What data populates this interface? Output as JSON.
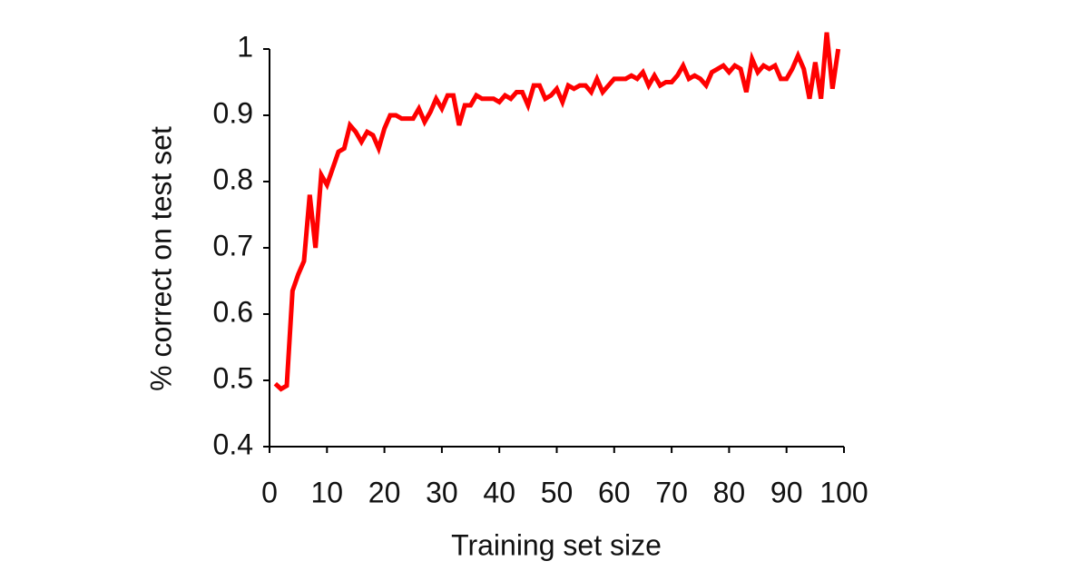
{
  "chart_data": {
    "type": "line",
    "x_label": "Training set size",
    "y_label": "% correct on test set",
    "xlim": [
      0,
      100
    ],
    "xticks": [
      0,
      10,
      20,
      30,
      40,
      50,
      60,
      70,
      80,
      90,
      100
    ],
    "ylim": [
      0.4,
      1
    ],
    "yticks": [
      0.4,
      0.5,
      0.6,
      0.7,
      0.8,
      0.9,
      1
    ],
    "grid": false,
    "x": [
      1,
      2,
      3,
      4,
      5,
      6,
      7,
      8,
      9,
      10,
      11,
      12,
      13,
      14,
      15,
      16,
      17,
      18,
      19,
      20,
      21,
      22,
      23,
      24,
      25,
      26,
      27,
      28,
      29,
      30,
      31,
      32,
      33,
      34,
      35,
      36,
      37,
      38,
      39,
      40,
      41,
      42,
      43,
      44,
      45,
      46,
      47,
      48,
      49,
      50,
      51,
      52,
      53,
      54,
      55,
      56,
      57,
      58,
      59,
      60,
      61,
      62,
      63,
      64,
      65,
      66,
      67,
      68,
      69,
      70,
      71,
      72,
      73,
      74,
      75,
      76,
      77,
      78,
      79,
      80,
      81,
      82,
      83,
      84,
      85,
      86,
      87,
      88,
      89,
      90,
      91,
      92,
      93,
      94,
      95,
      96,
      97,
      98,
      99
    ],
    "series": [
      {
        "color": "#ff0000",
        "values": [
          0.495,
          0.487,
          0.492,
          0.635,
          0.66,
          0.68,
          0.78,
          0.7,
          0.81,
          0.795,
          0.82,
          0.845,
          0.85,
          0.885,
          0.875,
          0.86,
          0.875,
          0.87,
          0.85,
          0.88,
          0.9,
          0.9,
          0.895,
          0.895,
          0.895,
          0.91,
          0.89,
          0.905,
          0.925,
          0.91,
          0.93,
          0.93,
          0.885,
          0.915,
          0.915,
          0.93,
          0.925,
          0.925,
          0.925,
          0.92,
          0.93,
          0.925,
          0.935,
          0.935,
          0.915,
          0.945,
          0.945,
          0.925,
          0.93,
          0.94,
          0.92,
          0.945,
          0.94,
          0.945,
          0.945,
          0.935,
          0.955,
          0.935,
          0.945,
          0.955,
          0.955,
          0.955,
          0.96,
          0.955,
          0.965,
          0.945,
          0.96,
          0.945,
          0.95,
          0.95,
          0.96,
          0.975,
          0.955,
          0.96,
          0.955,
          0.945,
          0.965,
          0.97,
          0.975,
          0.965,
          0.975,
          0.97,
          0.935,
          0.985,
          0.965,
          0.975,
          0.97,
          0.975,
          0.955,
          0.955,
          0.97,
          0.99,
          0.97,
          0.925,
          0.98,
          0.925,
          1.025,
          0.94,
          1.0
        ]
      }
    ]
  }
}
